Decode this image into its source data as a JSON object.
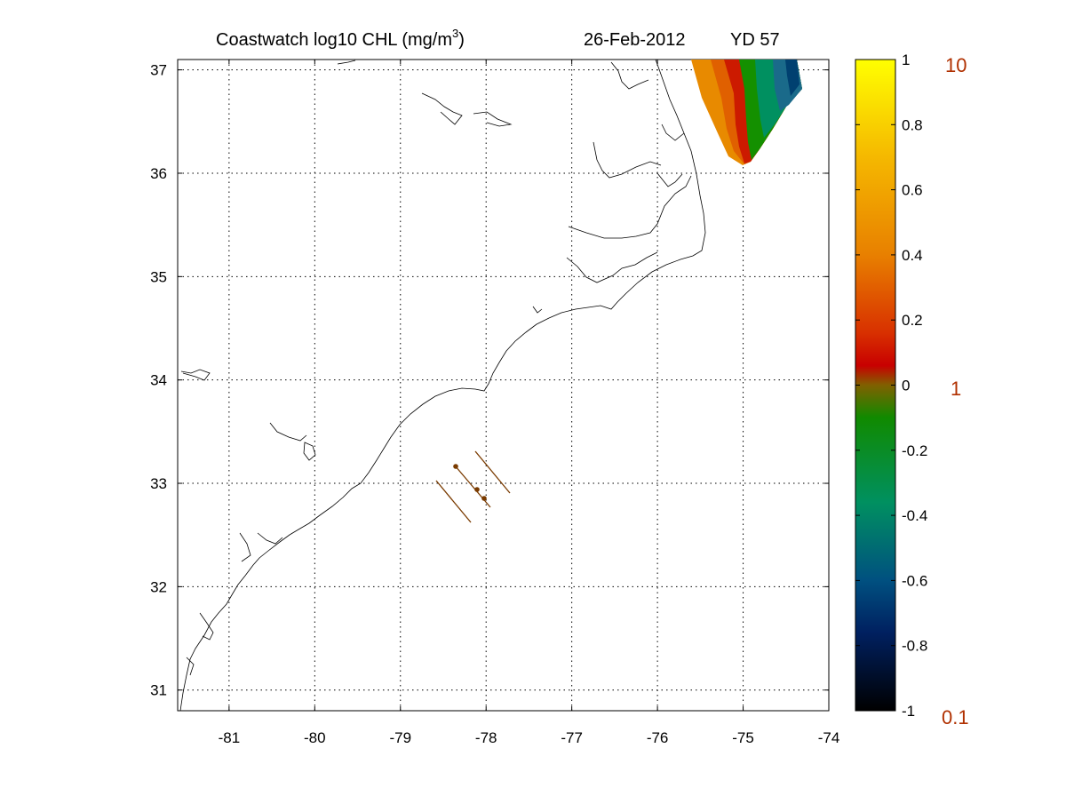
{
  "title": {
    "prefix": "Coastwatch  log10  CHL (mg/m",
    "superscript": "3",
    "suffix": ")",
    "date": "26-Feb-2012",
    "yearday": "YD 57"
  },
  "map": {
    "lon_range": [
      -81.6,
      -74
    ],
    "lat_range": [
      30.8,
      37.1
    ],
    "lon_ticks": [
      -81,
      -80,
      -79,
      -78,
      -77,
      -76,
      -75,
      -74
    ],
    "lat_ticks": [
      31,
      32,
      33,
      34,
      35,
      36,
      37
    ],
    "grid": "dotted",
    "lon_labels": [
      "-81",
      "-80",
      "-79",
      "-78",
      "-77",
      "-76",
      "-75",
      "-74"
    ],
    "lat_labels": [
      "31",
      "32",
      "33",
      "34",
      "35",
      "36",
      "37"
    ]
  },
  "colorbar": {
    "range": [
      -1,
      1
    ],
    "labels": [
      "1",
      "0.8",
      "0.6",
      "0.4",
      "0.2",
      "0",
      "-0.2",
      "-0.4",
      "-0.6",
      "-0.8",
      "-1"
    ],
    "ref_labels": [
      "10",
      "1",
      "0.1"
    ],
    "colors": {
      "top": "#ffff00",
      "orange": "#f09000",
      "red": "#cc0000",
      "green": "#009000",
      "teal": "#009070",
      "navy": "#002060",
      "bottom": "#000000"
    }
  },
  "transect_color": "#7a3b00"
}
